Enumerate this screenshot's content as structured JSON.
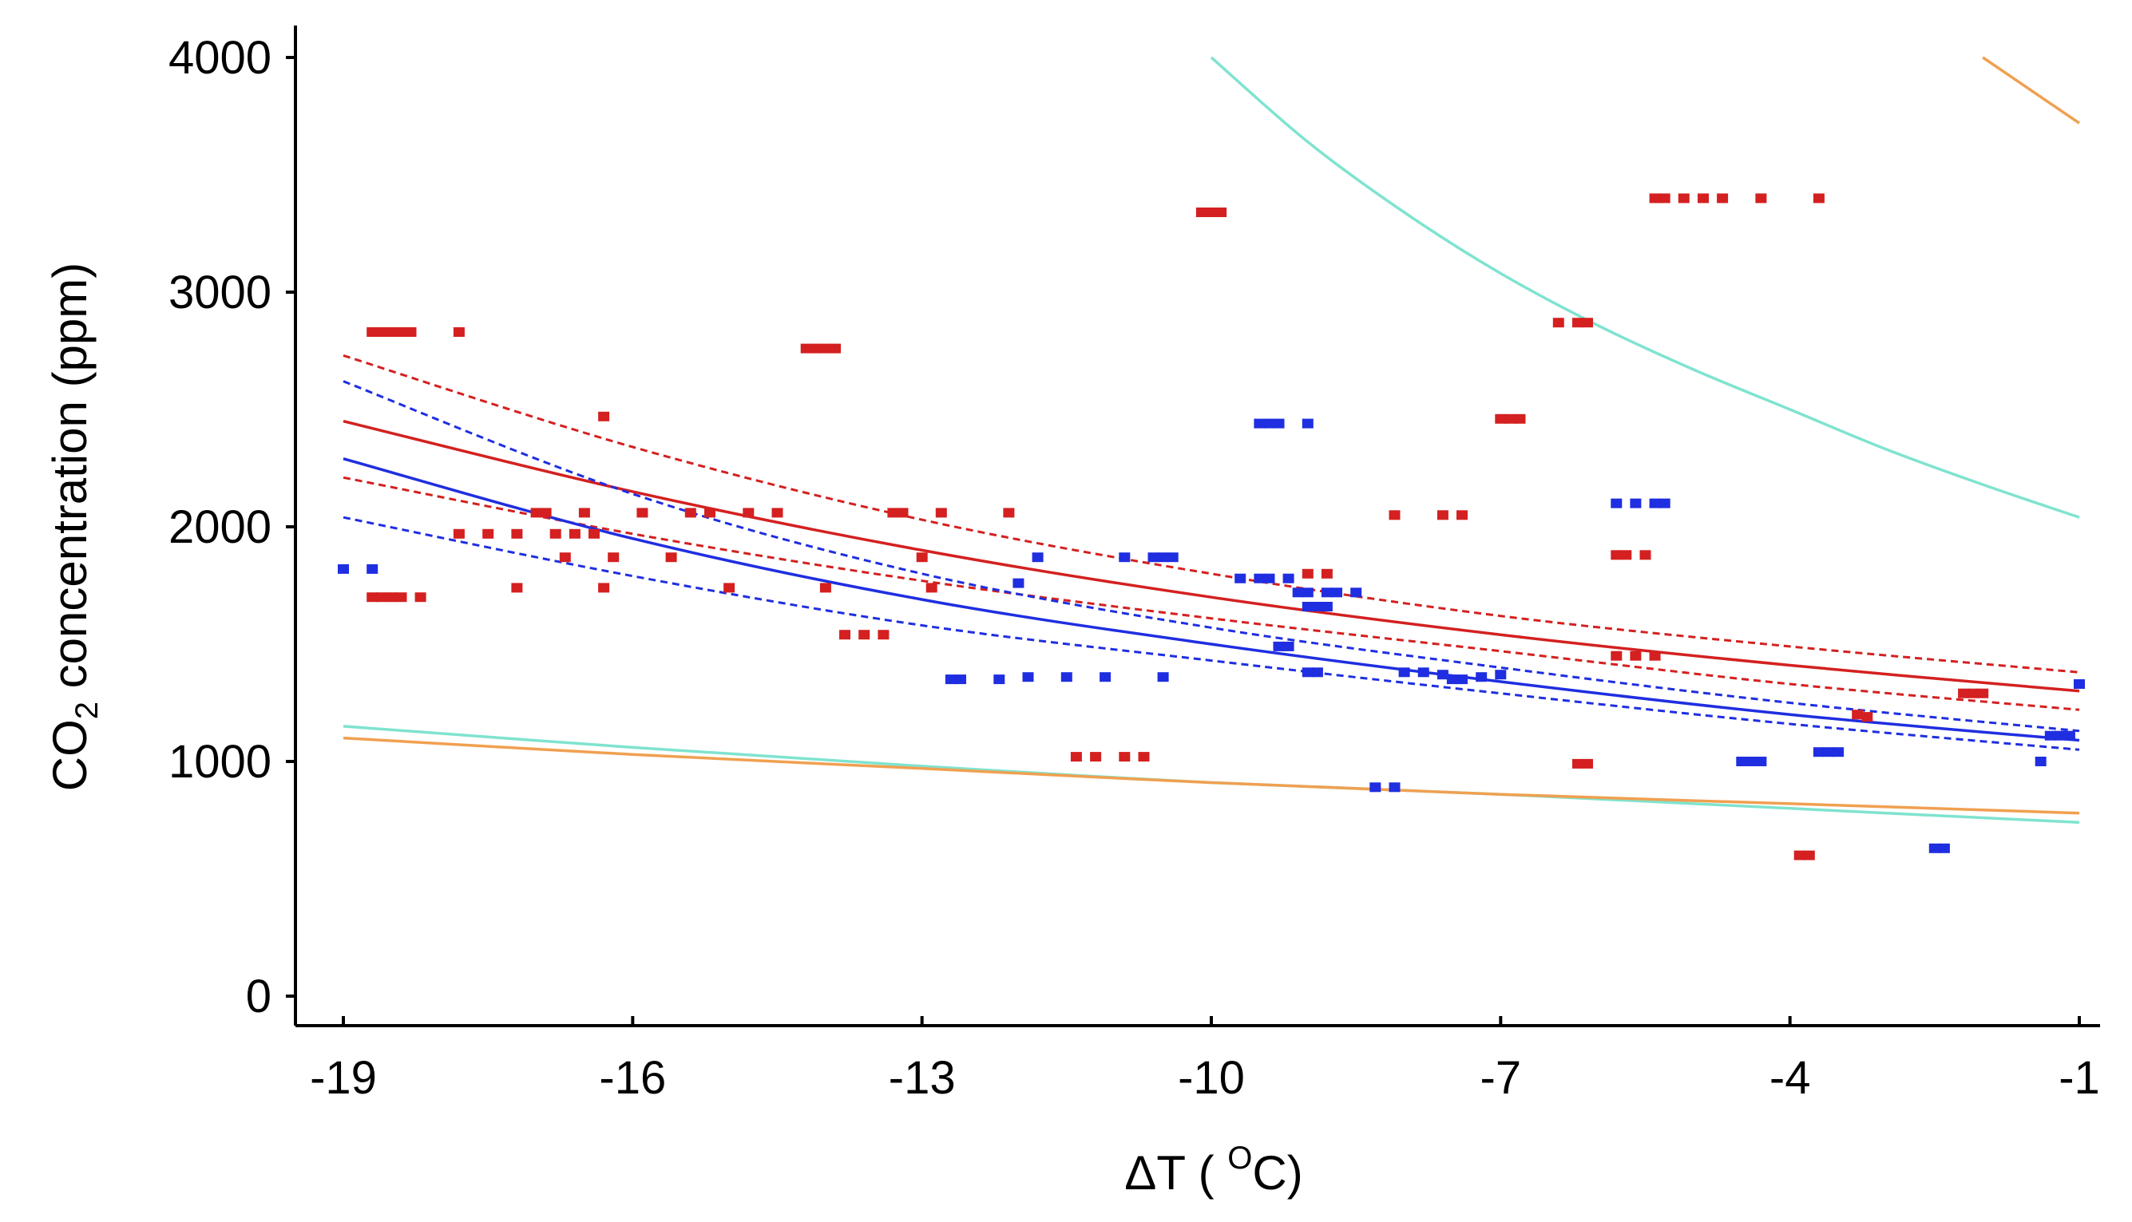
{
  "chart_data": {
    "type": "scatter",
    "title": "",
    "xlabel": "ΔT ( OC)",
    "xlabel_parts": {
      "main": "ΔT ( ",
      "sup": "O",
      "tail": "C)"
    },
    "ylabel": "CO2 concentration (ppm)",
    "ylabel_parts": {
      "pre": "CO",
      "sub": "2",
      "post": " concentration (ppm)"
    },
    "xlim": [
      -19,
      -1
    ],
    "ylim": [
      0,
      4000
    ],
    "xticks": [
      -19,
      -16,
      -13,
      -10,
      -7,
      -4,
      -1
    ],
    "xtick_labels": [
      "-19",
      "-16",
      "-13",
      "-10",
      "-7",
      "-4",
      "-1"
    ],
    "yticks": [
      0,
      1000,
      2000,
      3000,
      4000
    ],
    "ytick_labels": [
      "0",
      "1000",
      "2000",
      "3000",
      "4000"
    ],
    "grid": false,
    "colors": {
      "red": "#d42020",
      "blue": "#1f2ee0",
      "cyan": "#7fe3cf",
      "orange": "#f0a050"
    },
    "scatter_series": [
      {
        "name": "red points",
        "color": "#d42020",
        "points": [
          [
            -18.7,
            2830
          ],
          [
            -18.6,
            2830
          ],
          [
            -18.5,
            2830
          ],
          [
            -18.4,
            2830
          ],
          [
            -18.3,
            2830
          ],
          [
            -17.8,
            2830
          ],
          [
            -18.7,
            1700
          ],
          [
            -18.6,
            1700
          ],
          [
            -18.5,
            1700
          ],
          [
            -18.4,
            1700
          ],
          [
            -18.2,
            1700
          ],
          [
            -17.8,
            1970
          ],
          [
            -17.5,
            1970
          ],
          [
            -17.2,
            1970
          ],
          [
            -17.2,
            1740
          ],
          [
            -17.0,
            2060
          ],
          [
            -16.9,
            2060
          ],
          [
            -16.8,
            1970
          ],
          [
            -16.6,
            1970
          ],
          [
            -16.5,
            2060
          ],
          [
            -16.4,
            1970
          ],
          [
            -16.7,
            1870
          ],
          [
            -16.3,
            2470
          ],
          [
            -16.3,
            1740
          ],
          [
            -16.2,
            1870
          ],
          [
            -15.9,
            2060
          ],
          [
            -15.6,
            1870
          ],
          [
            -15.4,
            2060
          ],
          [
            -15.2,
            2060
          ],
          [
            -15.0,
            1740
          ],
          [
            -14.8,
            2060
          ],
          [
            -14.5,
            2060
          ],
          [
            -14.2,
            2760
          ],
          [
            -14.1,
            2760
          ],
          [
            -14.0,
            2760
          ],
          [
            -13.9,
            2760
          ],
          [
            -14.0,
            1740
          ],
          [
            -13.8,
            1540
          ],
          [
            -13.6,
            1540
          ],
          [
            -13.4,
            1540
          ],
          [
            -13.3,
            2060
          ],
          [
            -13.2,
            2060
          ],
          [
            -13.0,
            1870
          ],
          [
            -12.8,
            2060
          ],
          [
            -12.9,
            1740
          ],
          [
            -12.1,
            2060
          ],
          [
            -11.4,
            1020
          ],
          [
            -11.2,
            1020
          ],
          [
            -10.9,
            1020
          ],
          [
            -10.7,
            1020
          ],
          [
            -10.1,
            3340
          ],
          [
            -10.0,
            3340
          ],
          [
            -9.9,
            3340
          ],
          [
            -9.0,
            1800
          ],
          [
            -8.8,
            1800
          ],
          [
            -8.1,
            2050
          ],
          [
            -7.6,
            2050
          ],
          [
            -7.4,
            2050
          ],
          [
            -7.0,
            2460
          ],
          [
            -6.9,
            2460
          ],
          [
            -6.8,
            2460
          ],
          [
            -6.4,
            2870
          ],
          [
            -6.2,
            2870
          ],
          [
            -6.1,
            2870
          ],
          [
            -6.2,
            990
          ],
          [
            -6.1,
            990
          ],
          [
            -5.8,
            1880
          ],
          [
            -5.7,
            1880
          ],
          [
            -5.5,
            1880
          ],
          [
            -5.8,
            1450
          ],
          [
            -5.6,
            1450
          ],
          [
            -5.4,
            1450
          ],
          [
            -5.4,
            3400
          ],
          [
            -5.3,
            3400
          ],
          [
            -5.1,
            3400
          ],
          [
            -4.9,
            3400
          ],
          [
            -4.7,
            3400
          ],
          [
            -4.3,
            3400
          ],
          [
            -3.7,
            3400
          ],
          [
            -3.9,
            600
          ],
          [
            -3.8,
            600
          ],
          [
            -3.3,
            1200
          ],
          [
            -3.2,
            1190
          ],
          [
            -2.2,
            1290
          ],
          [
            -2.1,
            1290
          ],
          [
            -2.0,
            1290
          ]
        ]
      },
      {
        "name": "blue points",
        "color": "#1f2ee0",
        "points": [
          [
            -19.0,
            1820
          ],
          [
            -18.7,
            1820
          ],
          [
            -12.7,
            1350
          ],
          [
            -12.6,
            1350
          ],
          [
            -12.2,
            1350
          ],
          [
            -11.9,
            1360
          ],
          [
            -11.5,
            1360
          ],
          [
            -11.1,
            1360
          ],
          [
            -10.5,
            1360
          ],
          [
            -12.0,
            1760
          ],
          [
            -11.8,
            1870
          ],
          [
            -10.9,
            1870
          ],
          [
            -10.6,
            1870
          ],
          [
            -10.5,
            1870
          ],
          [
            -10.4,
            1870
          ],
          [
            -9.7,
            1780
          ],
          [
            -9.5,
            1780
          ],
          [
            -9.4,
            1780
          ],
          [
            -9.2,
            1780
          ],
          [
            -9.5,
            2440
          ],
          [
            -9.4,
            2440
          ],
          [
            -9.3,
            2440
          ],
          [
            -9.0,
            2440
          ],
          [
            -9.3,
            1490
          ],
          [
            -9.2,
            1490
          ],
          [
            -9.1,
            1720
          ],
          [
            -9.0,
            1720
          ],
          [
            -8.8,
            1720
          ],
          [
            -8.7,
            1720
          ],
          [
            -8.5,
            1720
          ],
          [
            -9.0,
            1660
          ],
          [
            -8.9,
            1660
          ],
          [
            -8.8,
            1660
          ],
          [
            -9.0,
            1380
          ],
          [
            -8.9,
            1380
          ],
          [
            -8.3,
            890
          ],
          [
            -8.1,
            890
          ],
          [
            -8.0,
            1380
          ],
          [
            -7.8,
            1380
          ],
          [
            -7.6,
            1370
          ],
          [
            -7.5,
            1350
          ],
          [
            -7.4,
            1350
          ],
          [
            -7.2,
            1360
          ],
          [
            -7.0,
            1370
          ],
          [
            -5.8,
            2100
          ],
          [
            -5.6,
            2100
          ],
          [
            -5.4,
            2100
          ],
          [
            -5.3,
            2100
          ],
          [
            -4.5,
            1000
          ],
          [
            -4.4,
            1000
          ],
          [
            -4.3,
            1000
          ],
          [
            -3.7,
            1040
          ],
          [
            -3.6,
            1040
          ],
          [
            -3.5,
            1040
          ],
          [
            -2.5,
            630
          ],
          [
            -2.4,
            630
          ],
          [
            -1.4,
            1000
          ],
          [
            -1.3,
            1110
          ],
          [
            -1.2,
            1110
          ],
          [
            -1.1,
            1110
          ],
          [
            -1.0,
            1330
          ]
        ]
      }
    ],
    "line_series": [
      {
        "name": "red fit",
        "color": "#d42020",
        "style": "solid",
        "x": [
          -19,
          -16,
          -13,
          -10,
          -7,
          -4,
          -1
        ],
        "y": [
          2450,
          2150,
          1900,
          1700,
          1540,
          1410,
          1300
        ]
      },
      {
        "name": "red upper band",
        "color": "#d42020",
        "style": "dashed",
        "x": [
          -19,
          -16,
          -13,
          -10,
          -7,
          -4,
          -1
        ],
        "y": [
          2730,
          2340,
          2030,
          1800,
          1620,
          1490,
          1380
        ]
      },
      {
        "name": "red lower band",
        "color": "#d42020",
        "style": "dashed",
        "x": [
          -19,
          -16,
          -13,
          -10,
          -7,
          -4,
          -1
        ],
        "y": [
          2210,
          1970,
          1770,
          1610,
          1470,
          1330,
          1220
        ]
      },
      {
        "name": "blue fit",
        "color": "#1f2ee0",
        "style": "solid",
        "x": [
          -19,
          -16,
          -13,
          -10,
          -7,
          -4,
          -1
        ],
        "y": [
          2290,
          1950,
          1690,
          1500,
          1340,
          1200,
          1090
        ]
      },
      {
        "name": "blue upper band",
        "color": "#1f2ee0",
        "style": "dashed",
        "x": [
          -19,
          -16,
          -13,
          -10,
          -7,
          -4,
          -1
        ],
        "y": [
          2620,
          2140,
          1800,
          1570,
          1400,
          1250,
          1130
        ]
      },
      {
        "name": "blue lower band",
        "color": "#1f2ee0",
        "style": "dashed",
        "x": [
          -19,
          -16,
          -13,
          -10,
          -7,
          -4,
          -1
        ],
        "y": [
          2040,
          1790,
          1580,
          1430,
          1290,
          1160,
          1050
        ]
      },
      {
        "name": "cyan upper curve",
        "color": "#7fe3cf",
        "style": "solid",
        "x": [
          -10,
          -9,
          -8,
          -7,
          -6,
          -5,
          -4,
          -3,
          -2,
          -1
        ],
        "y": [
          4000,
          3640,
          3340,
          3080,
          2860,
          2670,
          2500,
          2330,
          2180,
          2040
        ]
      },
      {
        "name": "orange upper curve",
        "color": "#f0a050",
        "style": "solid",
        "x": [
          -2.0,
          -1.5,
          -1.0
        ],
        "y": [
          4000,
          3860,
          3720
        ]
      },
      {
        "name": "cyan lower curve",
        "color": "#7fe3cf",
        "style": "solid",
        "x": [
          -19,
          -16,
          -13,
          -10,
          -7,
          -4,
          -1
        ],
        "y": [
          1150,
          1060,
          980,
          910,
          860,
          800,
          740
        ]
      },
      {
        "name": "orange lower curve",
        "color": "#f0a050",
        "style": "solid",
        "x": [
          -19,
          -16,
          -13,
          -10,
          -7,
          -4,
          -1
        ],
        "y": [
          1100,
          1030,
          970,
          910,
          860,
          820,
          780
        ]
      }
    ]
  }
}
